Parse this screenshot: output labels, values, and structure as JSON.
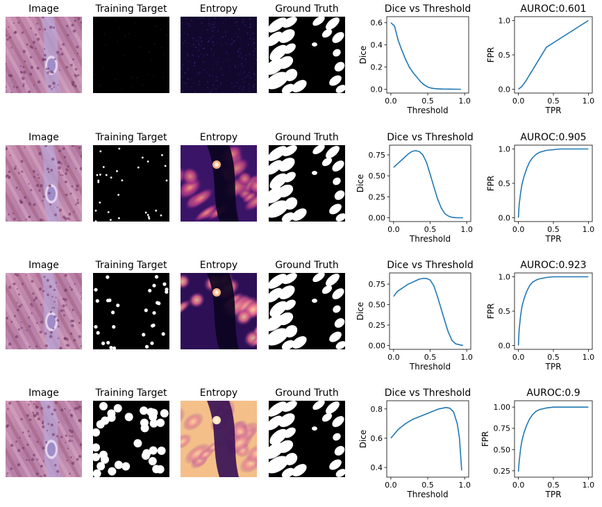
{
  "panel_titles": {
    "image": "Image",
    "training_target": "Training Target",
    "entropy": "Entropy",
    "ground_truth": "Ground Truth"
  },
  "chart_data": [
    {
      "row": 1,
      "type": "line",
      "title": "Dice vs Threshold",
      "xlabel": "Threshold",
      "ylabel": "Dice",
      "xlim": [
        0,
        1
      ],
      "ylim": [
        0,
        0.62
      ],
      "xticks": [
        "0.0",
        "0.5",
        "1.0"
      ],
      "yticks": [
        "0.0",
        "0.2",
        "0.4",
        "0.6"
      ],
      "x": [
        0,
        0.05,
        0.1,
        0.15,
        0.2,
        0.25,
        0.3,
        0.35,
        0.4,
        0.45,
        0.5,
        0.55,
        0.6,
        0.7,
        0.8,
        0.9,
        0.95
      ],
      "y": [
        0.6,
        0.57,
        0.44,
        0.35,
        0.27,
        0.2,
        0.15,
        0.11,
        0.07,
        0.04,
        0.02,
        0.01,
        0.005,
        0.002,
        0.001,
        0.0,
        0.0
      ],
      "color": "#1f77b4"
    },
    {
      "row": 1,
      "type": "line",
      "title": "AUROC:0.601",
      "xlabel": "TPR",
      "ylabel": "FPR",
      "xlim": [
        0,
        1
      ],
      "ylim": [
        0,
        1
      ],
      "xticks": [
        "0.0",
        "0.5",
        "1.0"
      ],
      "yticks": [
        "0.0",
        "0.5",
        "1.0"
      ],
      "x": [
        0,
        0.05,
        0.1,
        0.4,
        1.0
      ],
      "y": [
        0,
        0.04,
        0.11,
        0.61,
        1.0
      ],
      "color": "#1f77b4"
    },
    {
      "row": 2,
      "type": "line",
      "title": "Dice vs Threshold",
      "xlabel": "Threshold",
      "ylabel": "Dice",
      "xlim": [
        0,
        1
      ],
      "ylim": [
        0,
        0.82
      ],
      "xticks": [
        "0.0",
        "0.5",
        "1.0"
      ],
      "yticks": [
        "0.00",
        "0.25",
        "0.50",
        "0.75"
      ],
      "x": [
        0,
        0.05,
        0.1,
        0.15,
        0.2,
        0.25,
        0.3,
        0.35,
        0.4,
        0.45,
        0.5,
        0.55,
        0.6,
        0.65,
        0.7,
        0.75,
        0.8,
        0.85,
        0.9,
        0.95
      ],
      "y": [
        0.6,
        0.64,
        0.68,
        0.72,
        0.76,
        0.79,
        0.8,
        0.79,
        0.75,
        0.66,
        0.52,
        0.37,
        0.23,
        0.12,
        0.05,
        0.02,
        0.005,
        0.001,
        0.0,
        0.0
      ],
      "color": "#1f77b4"
    },
    {
      "row": 2,
      "type": "line",
      "title": "AUROC:0.905",
      "xlabel": "TPR",
      "ylabel": "FPR",
      "xlim": [
        0,
        1
      ],
      "ylim": [
        0,
        1
      ],
      "xticks": [
        "0.0",
        "0.5",
        "1.0"
      ],
      "yticks": [
        "0.0",
        "0.5",
        "1.0"
      ],
      "x": [
        0,
        0.01,
        0.03,
        0.05,
        0.08,
        0.12,
        0.16,
        0.2,
        0.25,
        0.3,
        0.4,
        0.5,
        0.6,
        0.8,
        1.0
      ],
      "y": [
        0,
        0.18,
        0.35,
        0.48,
        0.6,
        0.72,
        0.81,
        0.87,
        0.92,
        0.95,
        0.98,
        0.99,
        1.0,
        1.0,
        1.0
      ],
      "color": "#1f77b4"
    },
    {
      "row": 3,
      "type": "line",
      "title": "Dice vs Threshold",
      "xlabel": "Threshold",
      "ylabel": "Dice",
      "xlim": [
        0,
        1
      ],
      "ylim": [
        0,
        0.84
      ],
      "xticks": [
        "0.0",
        "0.5",
        "1.0"
      ],
      "yticks": [
        "0.00",
        "0.25",
        "0.50",
        "0.75"
      ],
      "x": [
        0,
        0.05,
        0.1,
        0.15,
        0.2,
        0.25,
        0.3,
        0.35,
        0.4,
        0.45,
        0.5,
        0.55,
        0.6,
        0.65,
        0.7,
        0.75,
        0.8,
        0.85,
        0.9,
        0.95
      ],
      "y": [
        0.6,
        0.66,
        0.69,
        0.72,
        0.75,
        0.77,
        0.79,
        0.81,
        0.82,
        0.82,
        0.8,
        0.73,
        0.6,
        0.45,
        0.3,
        0.16,
        0.06,
        0.02,
        0.01,
        0.0
      ],
      "color": "#1f77b4"
    },
    {
      "row": 3,
      "type": "line",
      "title": "AUROC:0.923",
      "xlabel": "TPR",
      "ylabel": "FPR",
      "xlim": [
        0,
        1
      ],
      "ylim": [
        0,
        1
      ],
      "xticks": [
        "0.0",
        "0.5",
        "1.0"
      ],
      "yticks": [
        "0.0",
        "0.5",
        "1.0"
      ],
      "x": [
        0,
        0.01,
        0.03,
        0.05,
        0.08,
        0.12,
        0.16,
        0.2,
        0.25,
        0.3,
        0.4,
        0.5,
        0.7,
        1.0
      ],
      "y": [
        0,
        0.22,
        0.42,
        0.56,
        0.68,
        0.79,
        0.87,
        0.92,
        0.95,
        0.97,
        0.99,
        1.0,
        1.0,
        1.0
      ],
      "color": "#1f77b4"
    },
    {
      "row": 4,
      "type": "line",
      "title": "Dice vs Threshold",
      "xlabel": "Threshold",
      "ylabel": "Dice",
      "xlim": [
        0,
        1
      ],
      "ylim": [
        0.36,
        0.83
      ],
      "xticks": [
        "0.0",
        "0.5",
        "1.0"
      ],
      "yticks": [
        "0.4",
        "0.6",
        "0.8"
      ],
      "x": [
        0,
        0.05,
        0.1,
        0.15,
        0.2,
        0.25,
        0.3,
        0.35,
        0.4,
        0.45,
        0.5,
        0.55,
        0.6,
        0.65,
        0.7,
        0.75,
        0.8,
        0.85,
        0.9,
        0.93,
        0.96
      ],
      "y": [
        0.6,
        0.63,
        0.66,
        0.68,
        0.7,
        0.715,
        0.73,
        0.74,
        0.75,
        0.76,
        0.77,
        0.78,
        0.79,
        0.8,
        0.805,
        0.81,
        0.805,
        0.78,
        0.7,
        0.6,
        0.38
      ],
      "color": "#1f77b4"
    },
    {
      "row": 4,
      "type": "line",
      "title": "AUROC:0.9",
      "xlabel": "TPR",
      "ylabel": "FPR",
      "xlim": [
        0,
        1
      ],
      "ylim": [
        0.22,
        1.03
      ],
      "xticks": [
        "0.0",
        "0.5",
        "1.0"
      ],
      "yticks": [
        "0.25",
        "0.50",
        "0.75",
        "1.00"
      ],
      "x": [
        0,
        0.01,
        0.03,
        0.05,
        0.08,
        0.12,
        0.16,
        0.2,
        0.25,
        0.3,
        0.4,
        0.5,
        0.7,
        1.0
      ],
      "y": [
        0.24,
        0.35,
        0.5,
        0.6,
        0.7,
        0.79,
        0.86,
        0.91,
        0.95,
        0.97,
        0.99,
        1.0,
        1.0,
        1.0
      ],
      "color": "#1f77b4"
    }
  ]
}
